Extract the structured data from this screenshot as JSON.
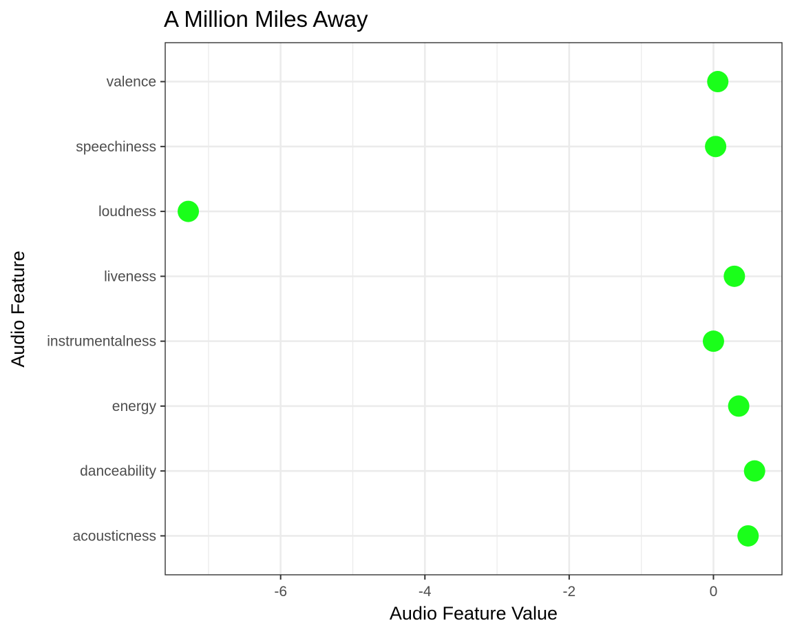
{
  "chart_data": {
    "type": "scatter",
    "title": "A Million Miles Away",
    "xlabel": "Audio Feature Value",
    "ylabel": "Audio Feature",
    "xlim": [
      -7.6,
      0.95
    ],
    "x_ticks": [
      -6,
      -4,
      -2,
      0
    ],
    "x_tick_labels": [
      "-6",
      "-4",
      "-2",
      "0"
    ],
    "x_minor_ticks": [
      -7,
      -5,
      -3,
      -1
    ],
    "categories": [
      "acousticness",
      "danceability",
      "energy",
      "instrumentalness",
      "liveness",
      "loudness",
      "speechiness",
      "valence"
    ],
    "values": [
      0.48,
      0.57,
      0.35,
      0.0,
      0.29,
      -7.28,
      0.03,
      0.06
    ],
    "grid": true,
    "legend": "none",
    "point_color": "#1aff1a",
    "background": "#ffffff",
    "grid_color": "#ebebeb",
    "border_color": "#333333"
  }
}
